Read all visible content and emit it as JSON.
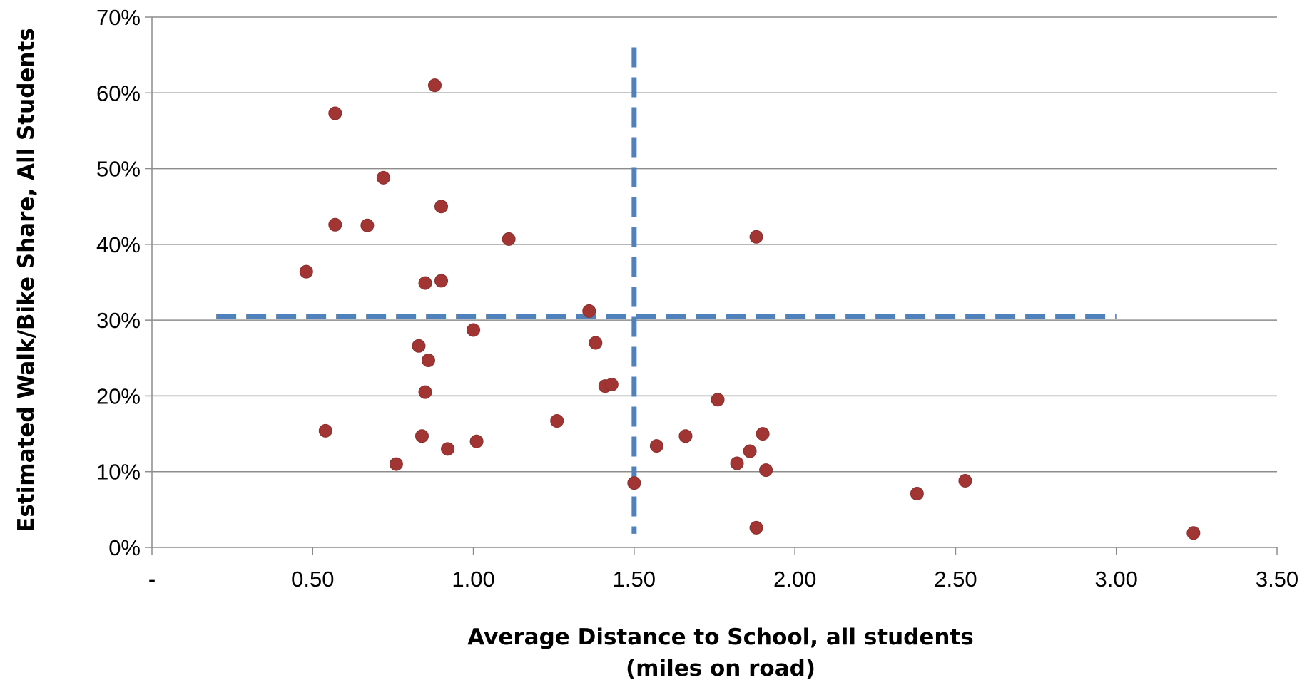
{
  "chart_data": {
    "type": "scatter",
    "xlabel_line1": "Average Distance to School, all students",
    "xlabel_line2": "(miles on road)",
    "ylabel": "Estimated Walk/Bike Share, All Students",
    "xlim": [
      0,
      3.5
    ],
    "ylim": [
      0,
      70
    ],
    "x_ticks": [
      {
        "value": 0,
        "label": "-"
      },
      {
        "value": 0.5,
        "label": "0.50"
      },
      {
        "value": 1.0,
        "label": "1.00"
      },
      {
        "value": 1.5,
        "label": "1.50"
      },
      {
        "value": 2.0,
        "label": "2.00"
      },
      {
        "value": 2.5,
        "label": "2.50"
      },
      {
        "value": 3.0,
        "label": "3.00"
      },
      {
        "value": 3.5,
        "label": "3.50"
      }
    ],
    "y_ticks": [
      {
        "value": 0,
        "label": "0%"
      },
      {
        "value": 10,
        "label": "10%"
      },
      {
        "value": 20,
        "label": "20%"
      },
      {
        "value": 30,
        "label": "30%"
      },
      {
        "value": 40,
        "label": "40%"
      },
      {
        "value": 50,
        "label": "50%"
      },
      {
        "value": 60,
        "label": "60%"
      },
      {
        "value": 70,
        "label": "70%"
      }
    ],
    "grid": true,
    "legend": "none",
    "point_color": "#a03533",
    "reference_color": "#4f81bd",
    "points": [
      {
        "x": 0.48,
        "y": 36.4
      },
      {
        "x": 0.54,
        "y": 15.4
      },
      {
        "x": 0.57,
        "y": 42.6
      },
      {
        "x": 0.57,
        "y": 57.3
      },
      {
        "x": 0.67,
        "y": 42.5
      },
      {
        "x": 0.72,
        "y": 48.8
      },
      {
        "x": 0.76,
        "y": 11.0
      },
      {
        "x": 0.83,
        "y": 26.6
      },
      {
        "x": 0.84,
        "y": 14.7
      },
      {
        "x": 0.85,
        "y": 20.5
      },
      {
        "x": 0.85,
        "y": 34.9
      },
      {
        "x": 0.86,
        "y": 24.7
      },
      {
        "x": 0.88,
        "y": 61.0
      },
      {
        "x": 0.9,
        "y": 35.2
      },
      {
        "x": 0.9,
        "y": 45.0
      },
      {
        "x": 0.92,
        "y": 13.0
      },
      {
        "x": 1.0,
        "y": 28.7
      },
      {
        "x": 1.01,
        "y": 14.0
      },
      {
        "x": 1.11,
        "y": 40.7
      },
      {
        "x": 1.26,
        "y": 16.7
      },
      {
        "x": 1.36,
        "y": 31.2
      },
      {
        "x": 1.38,
        "y": 27.0
      },
      {
        "x": 1.41,
        "y": 21.3
      },
      {
        "x": 1.43,
        "y": 21.5
      },
      {
        "x": 1.5,
        "y": 8.5
      },
      {
        "x": 1.57,
        "y": 13.4
      },
      {
        "x": 1.66,
        "y": 14.7
      },
      {
        "x": 1.76,
        "y": 19.5
      },
      {
        "x": 1.82,
        "y": 11.1
      },
      {
        "x": 1.86,
        "y": 12.7
      },
      {
        "x": 1.88,
        "y": 41.0
      },
      {
        "x": 1.88,
        "y": 2.6
      },
      {
        "x": 1.9,
        "y": 15.0
      },
      {
        "x": 1.91,
        "y": 10.2
      },
      {
        "x": 2.38,
        "y": 7.1
      },
      {
        "x": 2.53,
        "y": 8.8
      },
      {
        "x": 3.24,
        "y": 1.9
      }
    ],
    "reference_lines": [
      {
        "orientation": "horizontal",
        "y": 30.5,
        "x_from": 0.2,
        "x_to": 3.0
      },
      {
        "orientation": "vertical",
        "x": 1.5,
        "y_from": 1.8,
        "y_to": 66.0
      }
    ]
  }
}
